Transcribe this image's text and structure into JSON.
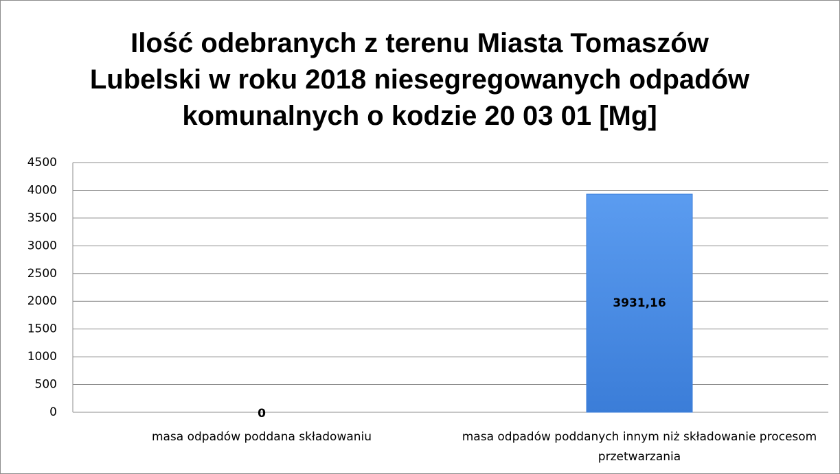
{
  "chart_data": {
    "type": "bar",
    "title": "Ilość odebranych  z terenu Miasta Tomaszów Lubelski w roku 2018 niesegregowanych odpadów komunalnych o kodzie 20 03 01 [Mg]",
    "categories": [
      "masa odpadów poddana składowaniu",
      "masa odpadów poddanych innym niż składowanie procesom przetwarzania"
    ],
    "values": [
      0,
      3931.16
    ],
    "value_labels": [
      "0",
      "3931,16"
    ],
    "color": "#3b7dd8",
    "ylim": [
      0,
      4500
    ],
    "yticks": [
      0,
      500,
      1000,
      1500,
      2000,
      2500,
      3000,
      3500,
      4000,
      4500
    ],
    "grid": true
  }
}
